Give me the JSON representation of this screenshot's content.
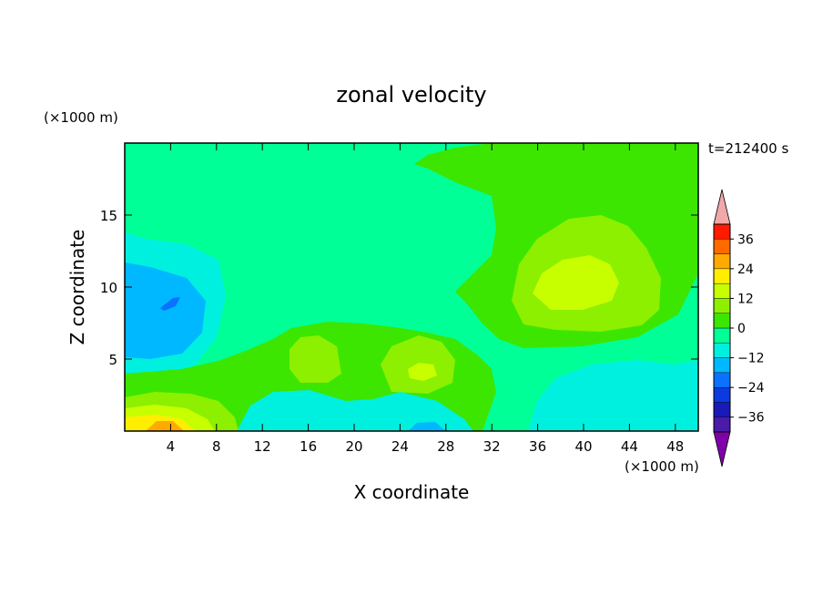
{
  "chart_data": {
    "type": "heatmap",
    "title": "zonal velocity",
    "xlabel": "X coordinate",
    "ylabel": "Z coordinate",
    "x_unit": "(×1000 m)",
    "y_unit": "(×1000 m)",
    "time_label": "t=212400 s",
    "xlim": [
      0,
      50
    ],
    "ylim": [
      0,
      20
    ],
    "x_ticks": [
      4,
      8,
      12,
      16,
      20,
      24,
      28,
      32,
      36,
      40,
      44,
      48
    ],
    "y_ticks": [
      5,
      10,
      15
    ],
    "colorbar": {
      "levels": [
        -42,
        -36,
        -30,
        -24,
        -18,
        -12,
        -6,
        0,
        6,
        12,
        18,
        24,
        30,
        36,
        42
      ],
      "colors": [
        "#7f00a8",
        "#4a1aa8",
        "#1a1ab8",
        "#0a3ae0",
        "#0a72ff",
        "#00b8ff",
        "#00f0e0",
        "#00ff96",
        "#3ce600",
        "#8cf000",
        "#c8ff00",
        "#ffee00",
        "#ffaa00",
        "#ff6a00",
        "#ff1a00",
        "#f0a8a8"
      ],
      "tick_values": [
        36,
        24,
        12,
        0,
        -12,
        -24,
        -36
      ],
      "tick_labels": [
        "36",
        "24",
        "12",
        "0",
        "−12",
        "−24",
        "−36"
      ]
    },
    "regions": [
      {
        "name": "upper-green",
        "level": 0,
        "x": 36,
        "z": 17
      },
      {
        "name": "right-maximum",
        "level": 12,
        "x": 40,
        "z": 11
      },
      {
        "name": "left-minimum",
        "level": -12,
        "x": 3,
        "z": 9
      },
      {
        "name": "surface-maximum",
        "level": 24,
        "x": 4,
        "z": 0.3
      },
      {
        "name": "mid-maximum-1",
        "level": 6,
        "x": 16,
        "z": 6
      },
      {
        "name": "mid-maximum-2",
        "level": 6,
        "x": 25,
        "z": 4
      }
    ]
  }
}
